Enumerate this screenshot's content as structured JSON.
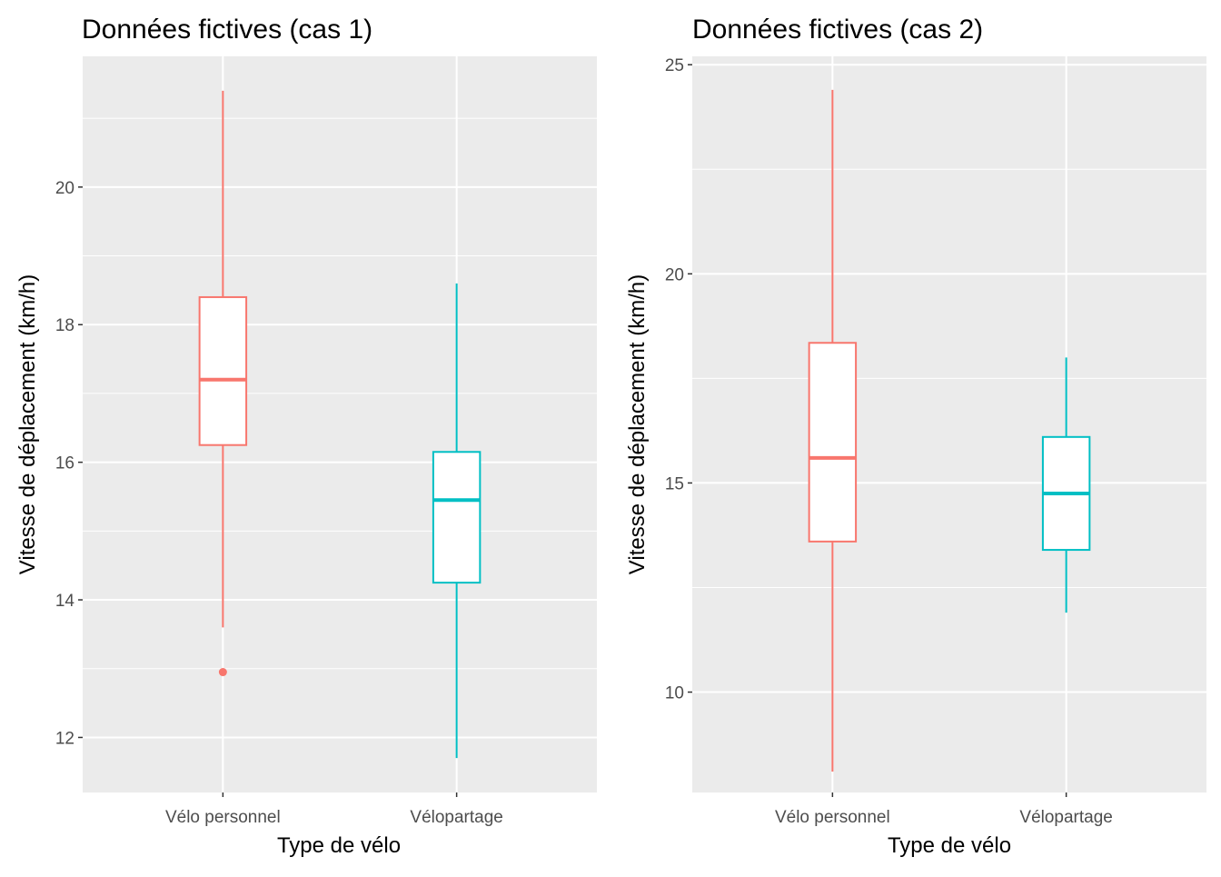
{
  "chart_data": [
    {
      "type": "boxplot",
      "title": "Données fictives (cas 1)",
      "xlabel": "Type de vélo",
      "ylabel": "Vitesse de déplacement (km/h)",
      "ylim": [
        11.2,
        21.9
      ],
      "yticks": [
        12,
        14,
        16,
        18,
        20
      ],
      "grid": true,
      "categories": [
        "Vélo personnel",
        "Vélopartage"
      ],
      "colors": [
        "#F8766D",
        "#00BFC4"
      ],
      "boxes": [
        {
          "category": "Vélo personnel",
          "min": 13.6,
          "q1": 16.25,
          "median": 17.2,
          "q3": 18.4,
          "max": 21.4,
          "outliers": [
            12.95
          ]
        },
        {
          "category": "Vélopartage",
          "min": 11.7,
          "q1": 14.25,
          "median": 15.45,
          "q3": 16.15,
          "max": 18.6,
          "outliers": []
        }
      ]
    },
    {
      "type": "boxplot",
      "title": "Données fictives (cas 2)",
      "xlabel": "Type de vélo",
      "ylabel": "Vitesse de déplacement (km/h)",
      "ylim": [
        7.6,
        25.2
      ],
      "yticks": [
        10,
        15,
        20,
        25
      ],
      "grid": true,
      "categories": [
        "Vélo personnel",
        "Vélopartage"
      ],
      "colors": [
        "#F8766D",
        "#00BFC4"
      ],
      "boxes": [
        {
          "category": "Vélo personnel",
          "min": 8.1,
          "q1": 13.6,
          "median": 15.6,
          "q3": 18.35,
          "max": 24.4,
          "outliers": []
        },
        {
          "category": "Vélopartage",
          "min": 11.9,
          "q1": 13.4,
          "median": 14.75,
          "q3": 16.1,
          "max": 18.0,
          "outliers": []
        }
      ]
    }
  ]
}
